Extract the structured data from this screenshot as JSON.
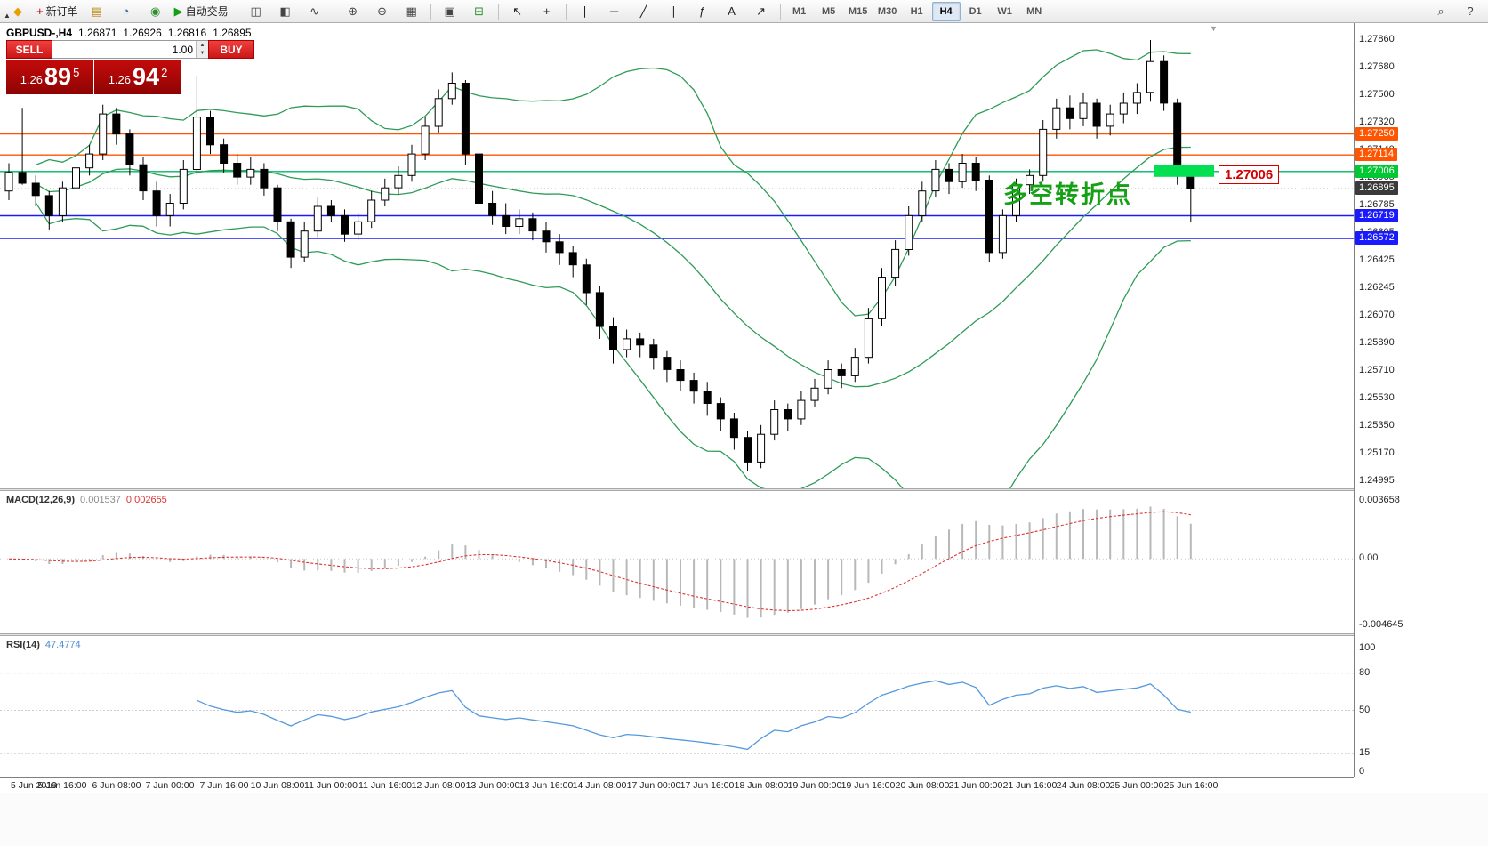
{
  "toolbar": {
    "items": [
      {
        "name": "app-logo-icon",
        "type": "icon",
        "glyph": "◆",
        "color": "#e8a000"
      },
      {
        "name": "new-order-button",
        "type": "btn",
        "glyph": "+",
        "glyph_color": "#c00000",
        "label": "新订单"
      },
      {
        "name": "chart-window-icon",
        "type": "icon",
        "glyph": "▤",
        "color": "#b8860b"
      },
      {
        "name": "profile-icon",
        "type": "icon",
        "glyph": "◔",
        "color": "#3a6ea5"
      },
      {
        "name": "refresh-icon",
        "type": "icon",
        "glyph": "◉",
        "color": "#2d8f2d"
      },
      {
        "name": "autotrading-button",
        "type": "btn",
        "glyph": "▶",
        "glyph_color": "#12a012",
        "label": "自动交易"
      },
      {
        "type": "sep"
      },
      {
        "name": "bars-chart-icon",
        "type": "icon",
        "glyph": "◫",
        "color": "#444444"
      },
      {
        "name": "candles-chart-icon",
        "type": "icon",
        "glyph": "◧",
        "color": "#444444"
      },
      {
        "name": "line-chart-icon",
        "type": "icon",
        "glyph": "∿",
        "color": "#444444"
      },
      {
        "type": "sep"
      },
      {
        "name": "zoom-in-icon",
        "type": "icon",
        "glyph": "⊕",
        "color": "#444444"
      },
      {
        "name": "zoom-out-icon",
        "type": "icon",
        "glyph": "⊖",
        "color": "#444444"
      },
      {
        "name": "tile-windows-icon",
        "type": "icon",
        "glyph": "▦",
        "color": "#444444"
      },
      {
        "type": "sep"
      },
      {
        "name": "new-chart-icon",
        "type": "icon",
        "glyph": "▣",
        "color": "#444444"
      },
      {
        "name": "indicators-icon",
        "type": "icon",
        "glyph": "⊞",
        "color": "#2d8f2d"
      },
      {
        "type": "sep"
      },
      {
        "name": "cursor-icon",
        "type": "icon",
        "glyph": "↖",
        "color": "#222222"
      },
      {
        "name": "crosshair-icon",
        "type": "icon",
        "glyph": "+",
        "color": "#222222"
      },
      {
        "type": "sep"
      },
      {
        "name": "vertical-line-icon",
        "type": "icon",
        "glyph": "∣",
        "color": "#222222"
      },
      {
        "name": "horizontal-line-icon",
        "type": "icon",
        "glyph": "─",
        "color": "#222222"
      },
      {
        "name": "trendline-icon",
        "type": "icon",
        "glyph": "╱",
        "color": "#222222"
      },
      {
        "name": "channel-icon",
        "type": "icon",
        "glyph": "∥",
        "color": "#222222"
      },
      {
        "name": "fibonacci-icon",
        "type": "icon",
        "glyph": "ƒ",
        "color": "#222222"
      },
      {
        "name": "text-tool-icon",
        "type": "icon",
        "glyph": "A",
        "color": "#222222"
      },
      {
        "name": "arrows-tool-icon",
        "type": "icon",
        "glyph": "↗",
        "color": "#222222"
      },
      {
        "type": "sep"
      },
      {
        "name": "tf-m1-button",
        "type": "tf",
        "label": "M1"
      },
      {
        "name": "tf-m5-button",
        "type": "tf",
        "label": "M5"
      },
      {
        "name": "tf-m15-button",
        "type": "tf",
        "label": "M15"
      },
      {
        "name": "tf-m30-button",
        "type": "tf",
        "label": "M30"
      },
      {
        "name": "tf-h1-button",
        "type": "tf",
        "label": "H1"
      },
      {
        "name": "tf-h4-button",
        "type": "tf",
        "label": "H4",
        "active": true
      },
      {
        "name": "tf-d1-button",
        "type": "tf",
        "label": "D1"
      },
      {
        "name": "tf-w1-button",
        "type": "tf",
        "label": "W1"
      },
      {
        "name": "tf-mn-button",
        "type": "tf",
        "label": "MN"
      },
      {
        "type": "gap"
      },
      {
        "name": "search-icon",
        "type": "icon",
        "glyph": "⌕",
        "color": "#444444"
      },
      {
        "name": "help-icon",
        "type": "icon",
        "glyph": "?",
        "color": "#444444"
      }
    ]
  },
  "chart": {
    "title": {
      "symbol": "GBPUSD-,H4",
      "open": "1.26871",
      "high": "1.26926",
      "low": "1.26816",
      "close": "1.26895"
    },
    "collapse_glyph": "▲",
    "shift_marker_glyph": "▼",
    "annotation": {
      "text": "多空转折点",
      "color": "#16a016"
    },
    "price_tag": {
      "text": "1.27006"
    },
    "axis_ticks": [
      "1.27860",
      "1.27680",
      "1.27500",
      "1.27320",
      "1.27140",
      "1.26965",
      "1.26785",
      "1.26605",
      "1.26425",
      "1.26245",
      "1.26070",
      "1.25890",
      "1.25710",
      "1.25530",
      "1.25350",
      "1.25170",
      "1.24995"
    ],
    "hlines": [
      {
        "price": 1.2725,
        "label": "1.27250",
        "color": "#ff5500"
      },
      {
        "price": 1.27114,
        "label": "1.27114",
        "color": "#ff5500"
      },
      {
        "price": 1.27006,
        "label": "1.27006",
        "color": "#00b464",
        "box": "#00c832"
      },
      {
        "price": 1.26719,
        "label": "1.26719",
        "color": "#1a1aff"
      },
      {
        "price": 1.26572,
        "label": "1.26572",
        "color": "#1a1aff"
      }
    ],
    "current_price": {
      "value": 1.26895,
      "label": "1.26895",
      "box": "#3a3a3a"
    },
    "highlight_rect": {
      "price": 1.27006,
      "color": "#00e050"
    }
  },
  "trade_panel": {
    "sell_label": "SELL",
    "buy_label": "BUY",
    "volume": "1.00",
    "sell_price_prefix": "1.26",
    "sell_price_big": "89",
    "sell_price_sup": "5",
    "buy_price_prefix": "1.26",
    "buy_price_big": "94",
    "buy_price_sup": "2"
  },
  "macd": {
    "label": "MACD(12,26,9)",
    "value_main": "0.001537",
    "value_signal": "0.002655",
    "axis_top": "0.003658",
    "axis_zero": "0.00",
    "axis_bottom": "-0.004645"
  },
  "rsi": {
    "label": "RSI(14)",
    "value": "47.4774",
    "axis": [
      {
        "v": 100,
        "t": "100"
      },
      {
        "v": 80,
        "t": "80"
      },
      {
        "v": 50,
        "t": "50"
      },
      {
        "v": 15,
        "t": "15"
      },
      {
        "v": 0,
        "t": "0"
      }
    ],
    "levels": [
      80,
      50,
      15
    ]
  },
  "time_axis": {
    "labels": [
      "5 Jun 2019",
      "5 Jun 16:00",
      "6 Jun 08:00",
      "7 Jun 00:00",
      "7 Jun 16:00",
      "10 Jun 08:00",
      "11 Jun 00:00",
      "11 Jun 16:00",
      "12 Jun 08:00",
      "13 Jun 00:00",
      "13 Jun 16:00",
      "14 Jun 08:00",
      "17 Jun 00:00",
      "17 Jun 16:00",
      "18 Jun 08:00",
      "19 Jun 00:00",
      "19 Jun 16:00",
      "20 Jun 08:00",
      "21 Jun 00:00",
      "21 Jun 16:00",
      "24 Jun 08:00",
      "25 Jun 00:00",
      "25 Jun 16:00"
    ]
  },
  "chart_data": {
    "type": "candlestick",
    "symbol": "GBPUSD",
    "timeframe": "H4",
    "y_range": [
      1.24995,
      1.2786
    ],
    "x_labels": [
      "5 Jun 2019",
      "5 Jun 16:00",
      "6 Jun 08:00",
      "7 Jun 00:00",
      "7 Jun 16:00",
      "10 Jun 08:00",
      "11 Jun 00:00",
      "11 Jun 16:00",
      "12 Jun 08:00",
      "13 Jun 00:00",
      "13 Jun 16:00",
      "14 Jun 08:00",
      "17 Jun 00:00",
      "17 Jun 16:00",
      "18 Jun 08:00",
      "19 Jun 00:00",
      "19 Jun 16:00",
      "20 Jun 08:00",
      "21 Jun 00:00",
      "21 Jun 16:00",
      "24 Jun 08:00",
      "25 Jun 00:00",
      "25 Jun 16:00"
    ],
    "overlays": {
      "bollinger": {
        "period": 20,
        "deviation": 2,
        "color": "#2e9b57"
      },
      "hlines": [
        1.2725,
        1.27114,
        1.27006,
        1.26719,
        1.26572
      ]
    },
    "indicators": [
      {
        "type": "macd",
        "params": [
          12,
          26,
          9
        ],
        "current_main": 0.001537,
        "current_signal": 0.002655,
        "axis_max": 0.003658,
        "axis_min": -0.004645
      },
      {
        "type": "rsi",
        "params": [
          14
        ],
        "current": 47.4774,
        "levels": [
          80,
          50,
          15
        ]
      }
    ],
    "ohlc": [
      [
        1.2688,
        1.2706,
        1.2682,
        1.27
      ],
      [
        1.27,
        1.2742,
        1.2692,
        1.2693
      ],
      [
        1.2693,
        1.2698,
        1.2678,
        1.2685
      ],
      [
        1.2685,
        1.2688,
        1.2663,
        1.2672
      ],
      [
        1.2672,
        1.2694,
        1.2668,
        1.269
      ],
      [
        1.269,
        1.2708,
        1.2685,
        1.2703
      ],
      [
        1.2703,
        1.2718,
        1.2698,
        1.2712
      ],
      [
        1.2712,
        1.2744,
        1.2708,
        1.2738
      ],
      [
        1.2738,
        1.2742,
        1.2718,
        1.2725
      ],
      [
        1.2725,
        1.2728,
        1.2698,
        1.2705
      ],
      [
        1.2705,
        1.271,
        1.2682,
        1.2688
      ],
      [
        1.2688,
        1.2694,
        1.2665,
        1.2672
      ],
      [
        1.2672,
        1.2686,
        1.2665,
        1.268
      ],
      [
        1.268,
        1.2708,
        1.2676,
        1.2702
      ],
      [
        1.2702,
        1.2763,
        1.2698,
        1.2736
      ],
      [
        1.2736,
        1.274,
        1.2712,
        1.2718
      ],
      [
        1.2718,
        1.2722,
        1.27,
        1.2706
      ],
      [
        1.2706,
        1.2712,
        1.2692,
        1.2697
      ],
      [
        1.2697,
        1.271,
        1.2692,
        1.2702
      ],
      [
        1.2702,
        1.2706,
        1.2685,
        1.269
      ],
      [
        1.269,
        1.2692,
        1.2662,
        1.2668
      ],
      [
        1.2668,
        1.267,
        1.2638,
        1.2645
      ],
      [
        1.2645,
        1.2668,
        1.2642,
        1.2662
      ],
      [
        1.2662,
        1.2684,
        1.2658,
        1.2678
      ],
      [
        1.2678,
        1.2682,
        1.2668,
        1.2672
      ],
      [
        1.2672,
        1.2676,
        1.2655,
        1.266
      ],
      [
        1.266,
        1.2674,
        1.2656,
        1.2668
      ],
      [
        1.2668,
        1.2688,
        1.2664,
        1.2682
      ],
      [
        1.2682,
        1.2696,
        1.2678,
        1.269
      ],
      [
        1.269,
        1.2704,
        1.2686,
        1.2698
      ],
      [
        1.2698,
        1.2718,
        1.2694,
        1.2712
      ],
      [
        1.2712,
        1.2736,
        1.2708,
        1.273
      ],
      [
        1.273,
        1.2754,
        1.2726,
        1.2748
      ],
      [
        1.2748,
        1.2765,
        1.2744,
        1.2758
      ],
      [
        1.2758,
        1.276,
        1.2705,
        1.2712
      ],
      [
        1.2712,
        1.2716,
        1.2672,
        1.268
      ],
      [
        1.268,
        1.2688,
        1.2666,
        1.2672
      ],
      [
        1.2672,
        1.268,
        1.266,
        1.2665
      ],
      [
        1.2665,
        1.2676,
        1.266,
        1.267
      ],
      [
        1.267,
        1.2674,
        1.2656,
        1.2662
      ],
      [
        1.2662,
        1.2668,
        1.2648,
        1.2655
      ],
      [
        1.2655,
        1.266,
        1.264,
        1.2648
      ],
      [
        1.2648,
        1.2652,
        1.2632,
        1.264
      ],
      [
        1.264,
        1.2644,
        1.2614,
        1.2622
      ],
      [
        1.2622,
        1.2626,
        1.2592,
        1.26
      ],
      [
        1.26,
        1.2606,
        1.2576,
        1.2585
      ],
      [
        1.2585,
        1.2598,
        1.258,
        1.2592
      ],
      [
        1.2592,
        1.2596,
        1.258,
        1.2588
      ],
      [
        1.2588,
        1.2592,
        1.2572,
        1.258
      ],
      [
        1.258,
        1.2584,
        1.2564,
        1.2572
      ],
      [
        1.2572,
        1.2578,
        1.2558,
        1.2565
      ],
      [
        1.2565,
        1.257,
        1.255,
        1.2558
      ],
      [
        1.2558,
        1.2564,
        1.2542,
        1.255
      ],
      [
        1.255,
        1.2554,
        1.2532,
        1.254
      ],
      [
        1.254,
        1.2544,
        1.252,
        1.2528
      ],
      [
        1.2528,
        1.2532,
        1.2506,
        1.2512
      ],
      [
        1.2512,
        1.2536,
        1.2508,
        1.253
      ],
      [
        1.253,
        1.2552,
        1.2526,
        1.2546
      ],
      [
        1.2546,
        1.255,
        1.2532,
        1.254
      ],
      [
        1.254,
        1.2558,
        1.2536,
        1.2552
      ],
      [
        1.2552,
        1.2566,
        1.2548,
        1.256
      ],
      [
        1.256,
        1.2578,
        1.2556,
        1.2572
      ],
      [
        1.2572,
        1.2576,
        1.256,
        1.2568
      ],
      [
        1.2568,
        1.2586,
        1.2564,
        1.258
      ],
      [
        1.258,
        1.2612,
        1.2576,
        1.2605
      ],
      [
        1.2605,
        1.2638,
        1.26,
        1.2632
      ],
      [
        1.2632,
        1.2656,
        1.2626,
        1.265
      ],
      [
        1.265,
        1.2678,
        1.2646,
        1.2672
      ],
      [
        1.2672,
        1.2694,
        1.2668,
        1.2688
      ],
      [
        1.2688,
        1.2708,
        1.2684,
        1.2702
      ],
      [
        1.2702,
        1.2706,
        1.2686,
        1.2694
      ],
      [
        1.2694,
        1.2712,
        1.269,
        1.2706
      ],
      [
        1.2706,
        1.271,
        1.2688,
        1.2695
      ],
      [
        1.2695,
        1.2698,
        1.2642,
        1.2648
      ],
      [
        1.2648,
        1.2676,
        1.2644,
        1.2672
      ],
      [
        1.2672,
        1.2696,
        1.2668,
        1.2692
      ],
      [
        1.2692,
        1.2702,
        1.2686,
        1.2698
      ],
      [
        1.2698,
        1.2734,
        1.2694,
        1.2728
      ],
      [
        1.2728,
        1.2748,
        1.2722,
        1.2742
      ],
      [
        1.2742,
        1.275,
        1.2728,
        1.2735
      ],
      [
        1.2735,
        1.2752,
        1.273,
        1.2745
      ],
      [
        1.2745,
        1.2748,
        1.2722,
        1.273
      ],
      [
        1.273,
        1.2744,
        1.2724,
        1.2738
      ],
      [
        1.2738,
        1.2752,
        1.2732,
        1.2745
      ],
      [
        1.2745,
        1.2758,
        1.2738,
        1.2752
      ],
      [
        1.2752,
        1.2786,
        1.2746,
        1.2772
      ],
      [
        1.2772,
        1.2776,
        1.274,
        1.2745
      ],
      [
        1.2745,
        1.2748,
        1.2692,
        1.27
      ],
      [
        1.27,
        1.2704,
        1.2668,
        1.26895
      ]
    ]
  }
}
